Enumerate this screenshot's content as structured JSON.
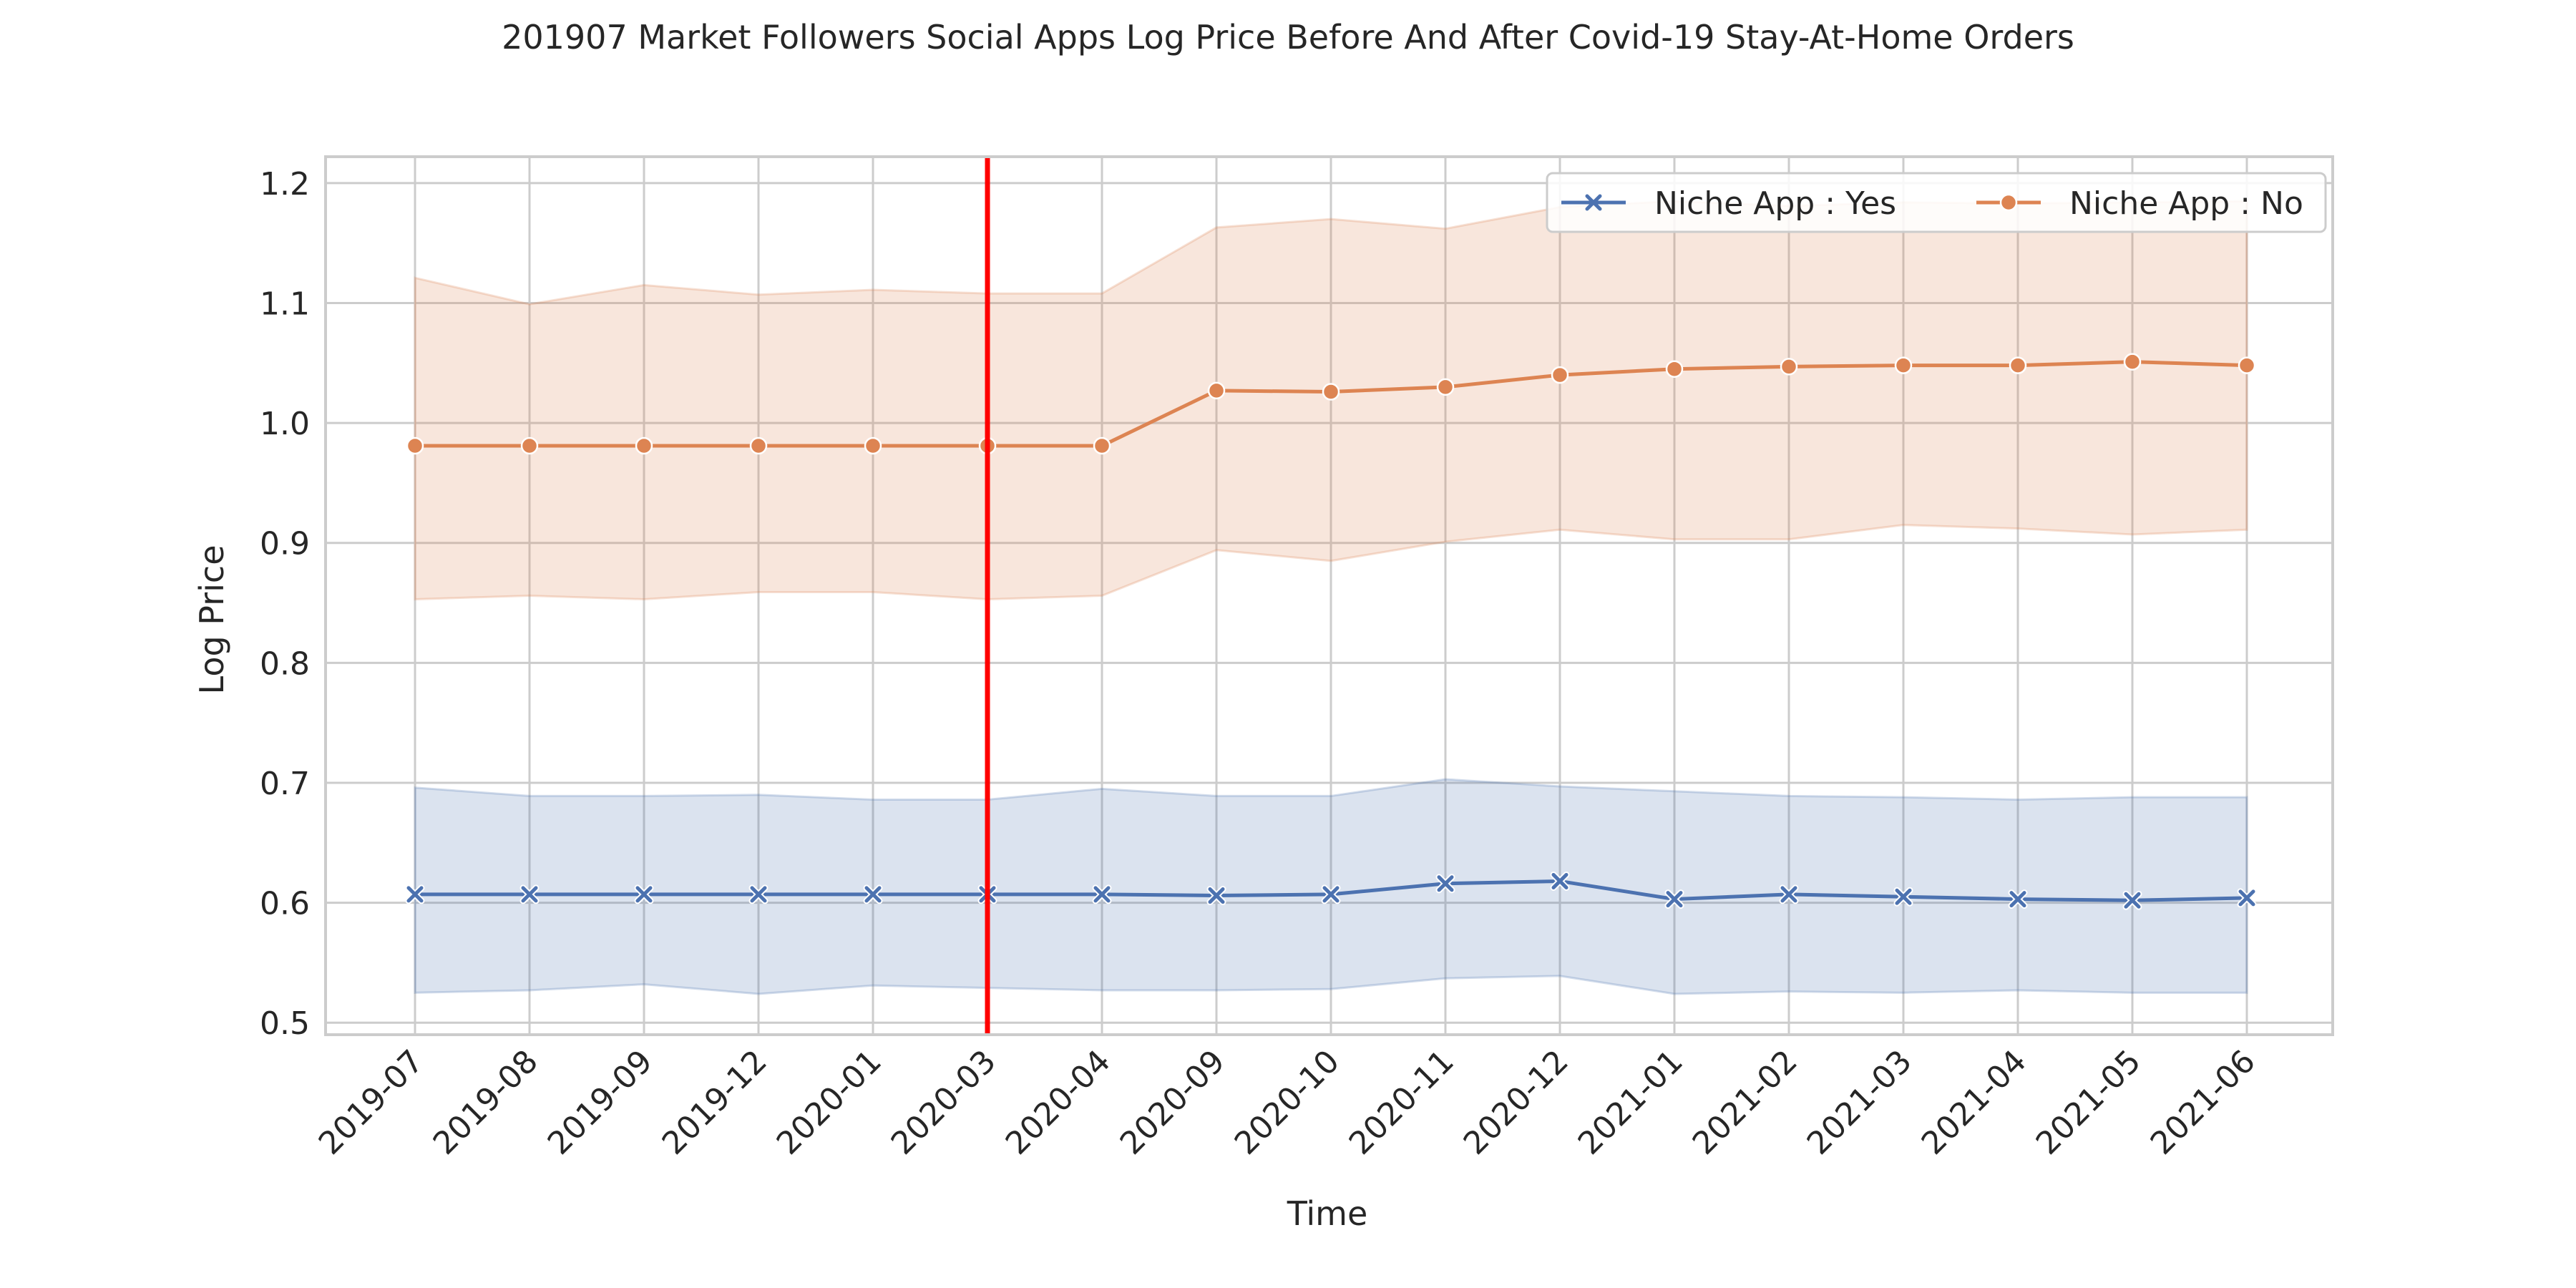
{
  "chart_data": {
    "type": "line",
    "title": "201907 Market Followers Social Apps Log Price Before And After Covid-19 Stay-At-Home Orders",
    "xlabel": "Time",
    "ylabel": "Log Price",
    "categories": [
      "2019-07",
      "2019-08",
      "2019-09",
      "2019-12",
      "2020-01",
      "2020-03",
      "2020-04",
      "2020-09",
      "2020-10",
      "2020-11",
      "2020-12",
      "2021-01",
      "2021-02",
      "2021-03",
      "2021-04",
      "2021-05",
      "2021-06"
    ],
    "yticks": [
      "0.5",
      "0.6",
      "0.7",
      "0.8",
      "0.9",
      "1.0",
      "1.1",
      "1.2"
    ],
    "ylim": [
      0.49,
      1.222
    ],
    "grid": true,
    "legend_position": "top-right",
    "vertical_marker": {
      "at": "2020-03",
      "color": "#ff0000"
    },
    "series": [
      {
        "name": "Niche App : Yes",
        "color": "#4c72b0",
        "marker": "x",
        "values": [
          0.607,
          0.607,
          0.607,
          0.607,
          0.607,
          0.607,
          0.607,
          0.606,
          0.607,
          0.616,
          0.618,
          0.603,
          0.607,
          0.605,
          0.603,
          0.602,
          0.604
        ],
        "ci_lower": [
          0.525,
          0.527,
          0.532,
          0.524,
          0.531,
          0.529,
          0.527,
          0.527,
          0.528,
          0.537,
          0.539,
          0.524,
          0.526,
          0.525,
          0.527,
          0.525,
          0.525
        ],
        "ci_upper": [
          0.696,
          0.689,
          0.689,
          0.69,
          0.686,
          0.686,
          0.695,
          0.689,
          0.689,
          0.703,
          0.697,
          0.693,
          0.689,
          0.688,
          0.686,
          0.688,
          0.688
        ]
      },
      {
        "name": "Niche App : No",
        "color": "#dd8452",
        "marker": "o",
        "values": [
          0.981,
          0.981,
          0.981,
          0.981,
          0.981,
          0.981,
          0.981,
          1.027,
          1.026,
          1.03,
          1.04,
          1.045,
          1.047,
          1.048,
          1.048,
          1.051,
          1.048
        ],
        "ci_lower": [
          0.853,
          0.856,
          0.853,
          0.859,
          0.859,
          0.853,
          0.856,
          0.894,
          0.885,
          0.901,
          0.911,
          0.903,
          0.903,
          0.915,
          0.912,
          0.907,
          0.911
        ],
        "ci_upper": [
          1.121,
          1.099,
          1.115,
          1.107,
          1.111,
          1.108,
          1.108,
          1.163,
          1.17,
          1.162,
          1.18,
          1.185,
          1.181,
          1.184,
          1.183,
          1.184,
          1.185
        ]
      }
    ]
  }
}
